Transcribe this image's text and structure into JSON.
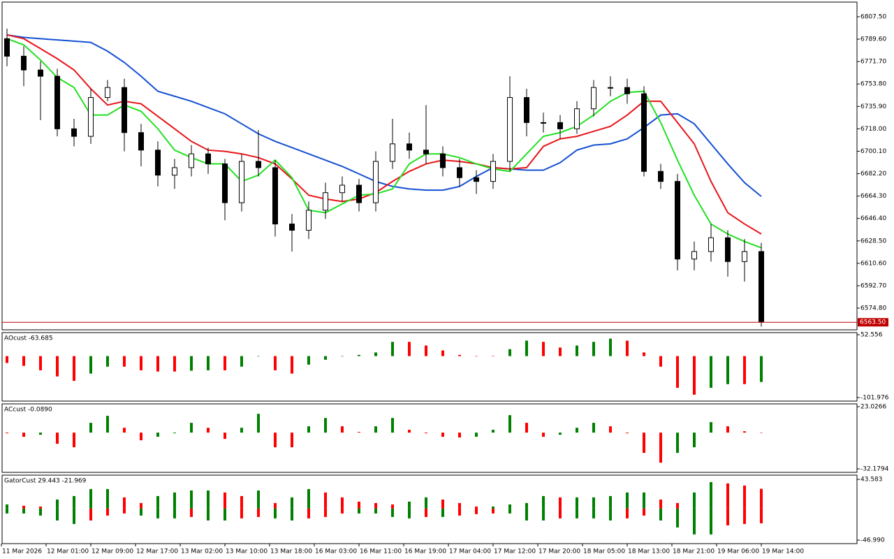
{
  "chart_data": [
    {
      "type": "candlestick",
      "open": [
        6790,
        6776,
        6765,
        6760,
        6718,
        6712,
        6743,
        6751,
        6715,
        6701,
        6681,
        6687,
        6698,
        6690,
        6659,
        6692,
        6687,
        6642,
        6637,
        6653,
        6667,
        6673,
        6659,
        6692,
        6706,
        6701,
        6698,
        6687,
        6679,
        6676,
        6692,
        6743,
        6723,
        6723,
        6718,
        6734,
        6751,
        6751,
        6746,
        6684,
        6676,
        6614,
        6620,
        6631,
        6612,
        6620
      ],
      "high": [
        6798,
        6784,
        6772,
        6766,
        6726,
        6750,
        6757,
        6758,
        6722,
        6708,
        6694,
        6705,
        6703,
        6694,
        6698,
        6717,
        6693,
        6650,
        6660,
        6675,
        6680,
        6678,
        6700,
        6726,
        6715,
        6737,
        6704,
        6694,
        6685,
        6698,
        6760,
        6750,
        6731,
        6729,
        6740,
        6757,
        6760,
        6758,
        6752,
        6690,
        6682,
        6628,
        6642,
        6637,
        6630,
        6627
      ],
      "low": [
        6768,
        6752,
        6725,
        6712,
        6704,
        6706,
        6740,
        6700,
        6688,
        6672,
        6670,
        6680,
        6682,
        6645,
        6652,
        6680,
        6632,
        6620,
        6630,
        6646,
        6660,
        6652,
        6652,
        6686,
        6694,
        6690,
        6680,
        6672,
        6666,
        6670,
        6684,
        6712,
        6715,
        6710,
        6714,
        6728,
        6744,
        6738,
        6680,
        6670,
        6605,
        6605,
        6612,
        6600,
        6596,
        6560
      ],
      "close": [
        6776,
        6765,
        6760,
        6718,
        6712,
        6743,
        6751,
        6715,
        6701,
        6681,
        6687,
        6698,
        6690,
        6659,
        6692,
        6687,
        6642,
        6637,
        6653,
        6667,
        6673,
        6659,
        6692,
        6706,
        6701,
        6698,
        6687,
        6679,
        6676,
        6692,
        6743,
        6723,
        6723,
        6718,
        6734,
        6751,
        6751,
        6746,
        6684,
        6676,
        6614,
        6620,
        6631,
        6612,
        6620,
        6564
      ],
      "up_color": "#ffffff",
      "down_color": "#000000",
      "series": [
        {
          "color": "#1450d2",
          "values": [
            6793,
            6791,
            6790,
            6789,
            6788,
            6787,
            6780,
            6771,
            6760,
            6748,
            6744,
            6740,
            6735,
            6730,
            6722,
            6714,
            6708,
            6703,
            6698,
            6693,
            6688,
            6682,
            6676,
            6672,
            6670,
            6669,
            6669,
            6672,
            6680,
            6687,
            6686,
            6685,
            6685,
            6691,
            6701,
            6705,
            6706,
            6710,
            6719,
            6729,
            6730,
            6722,
            6706,
            6690,
            6675,
            6664
          ]
        },
        {
          "color": "#e8141a",
          "values": [
            6793,
            6790,
            6782,
            6774,
            6765,
            6750,
            6737,
            6740,
            6738,
            6728,
            6718,
            6708,
            6701,
            6700,
            6698,
            6695,
            6690,
            6678,
            6665,
            6662,
            6660,
            6662,
            6667,
            6676,
            6684,
            6690,
            6693,
            6692,
            6690,
            6687,
            6686,
            6687,
            6704,
            6710,
            6712,
            6716,
            6720,
            6729,
            6740,
            6740,
            6723,
            6706,
            6676,
            6651,
            6642,
            6634
          ]
        },
        {
          "color": "#22e022",
          "values": [
            6790,
            6785,
            6773,
            6759,
            6751,
            6729,
            6729,
            6737,
            6732,
            6718,
            6701,
            6695,
            6690,
            6690,
            6676,
            6681,
            6693,
            6679,
            6653,
            6651,
            6658,
            6665,
            6666,
            6670,
            6690,
            6698,
            6698,
            6695,
            6690,
            6686,
            6684,
            6698,
            6712,
            6715,
            6720,
            6729,
            6740,
            6747,
            6748,
            6723,
            6693,
            6665,
            6642,
            6634,
            6628,
            6623
          ]
        }
      ],
      "current_price": {
        "value": 6563.5,
        "label": "6563.50"
      },
      "current_color": "#c00000",
      "ylim": [
        6557.5,
        6819.2
      ],
      "yticks": [
        {
          "value": 6807.5,
          "label": "6807.50"
        },
        {
          "value": 6789.6,
          "label": "6789.60"
        },
        {
          "value": 6771.7,
          "label": "6771.70"
        },
        {
          "value": 6753.8,
          "label": "6753.80"
        },
        {
          "value": 6735.9,
          "label": "6735.90"
        },
        {
          "value": 6718,
          "label": "6718.00"
        },
        {
          "value": 6700.1,
          "label": "6700.10"
        },
        {
          "value": 6682.2,
          "label": "6682.20"
        },
        {
          "value": 6664.3,
          "label": "6664.30"
        },
        {
          "value": 6646.4,
          "label": "6646.40"
        },
        {
          "value": 6628.5,
          "label": "6628.50"
        },
        {
          "value": 6610.6,
          "label": "6610.60"
        },
        {
          "value": 6592.7,
          "label": "6592.70"
        },
        {
          "value": 6574.8,
          "label": "6574.80"
        }
      ],
      "time_labels": [
        "11 Mar 2026",
        "12 Mar 01:00",
        "12 Mar 09:00",
        "12 Mar 17:00",
        "13 Mar 02:00",
        "13 Mar 10:00",
        "13 Mar 18:00",
        "16 Mar 03:00",
        "16 Mar 11:00",
        "16 Mar 19:00",
        "17 Mar 04:00",
        "17 Mar 12:00",
        "17 Mar 20:00",
        "18 Mar 05:00",
        "18 Mar 13:00",
        "18 Mar 21:00",
        "19 Mar 06:00",
        "19 Mar 14:00"
      ]
    },
    {
      "type": "bar",
      "title": "AOcust -63.685",
      "values": [
        -17,
        -24,
        -35,
        -50,
        -61,
        -43,
        -26,
        -26,
        -35,
        -38,
        -38,
        -36,
        -35,
        -35,
        -26,
        0,
        -35,
        -43,
        -21,
        -9,
        0,
        3,
        9,
        35,
        35,
        26,
        14,
        3,
        0,
        0,
        17,
        38,
        35,
        21,
        26,
        35,
        43,
        38,
        9,
        -26,
        -78,
        -95,
        -78,
        -69,
        -69,
        -63.685
      ],
      "up_color": "#008000",
      "down_color": "#ff0000",
      "ylim": [
        -110.7,
        57.8
      ],
      "yticks": [
        52.556,
        -101.976
      ]
    },
    {
      "type": "bar",
      "title": "ACcust -0.0890",
      "values": [
        -0.6,
        -3.7,
        -1.9,
        -9.9,
        -13,
        8.7,
        14.9,
        4.3,
        -6.8,
        -3.7,
        -0.6,
        8.7,
        4.3,
        -5.6,
        4.3,
        16.7,
        -13,
        -13,
        5.6,
        13,
        5.6,
        0.6,
        5.6,
        13,
        2.5,
        -0.6,
        -3.7,
        -4.3,
        -3.7,
        2.5,
        15.5,
        8.7,
        -3.7,
        -1.9,
        4.3,
        8.7,
        5.6,
        -0.6,
        -18,
        -26.7,
        -18,
        -13,
        9.3,
        5.6,
        1.2,
        -0.089
      ],
      "up_color": "#008000",
      "down_color": "#ff0000",
      "ylim": [
        -35.28,
        25.51
      ],
      "yticks": [
        23.0266,
        -32.1794
      ]
    },
    {
      "type": "bar",
      "title": "GatorCust 29.443 -21.969",
      "series": [
        {
          "values": [
            6.2,
            4.2,
            3.1,
            13.5,
            18.7,
            29.1,
            29.1,
            16.7,
            8.3,
            18.7,
            24,
            27,
            27,
            24,
            18.7,
            27,
            8.3,
            16.7,
            29.1,
            24,
            16.7,
            10.4,
            8.3,
            6.2,
            10.4,
            16.7,
            13.5,
            8.3,
            3.1,
            3.1,
            6.2,
            8.3,
            18.7,
            16.7,
            16.7,
            16.7,
            18.7,
            24,
            24,
            13.5,
            8.3,
            24,
            39.5,
            37.5,
            34.4,
            29.443
          ]
        },
        {
          "values": [
            -7.3,
            -7.3,
            -10.4,
            -17.7,
            -22.9,
            -17.7,
            -10.4,
            -7.3,
            -10.4,
            -14.6,
            -14.6,
            -12.5,
            -17.7,
            -17.7,
            -14.6,
            -12.5,
            -14.6,
            -17.7,
            -14.6,
            -12.5,
            -7.3,
            -7.3,
            -7.3,
            -12.5,
            -14.6,
            -12.5,
            -12.5,
            -10.4,
            -8.3,
            -7.3,
            -7.3,
            -17.7,
            -17.7,
            -14.6,
            -14.6,
            -14.6,
            -17.7,
            -14.6,
            -10.4,
            -17.7,
            -28.1,
            -38.5,
            -38.5,
            -25,
            -22.9,
            -21.969
          ]
        }
      ],
      "up_color": "#008000",
      "down_color": "#ff0000",
      "ylim": [
        -52.2,
        49.83
      ],
      "yticks": [
        43.583,
        {
          "value": -46.99,
          "label": "-46.990"
        }
      ]
    }
  ]
}
